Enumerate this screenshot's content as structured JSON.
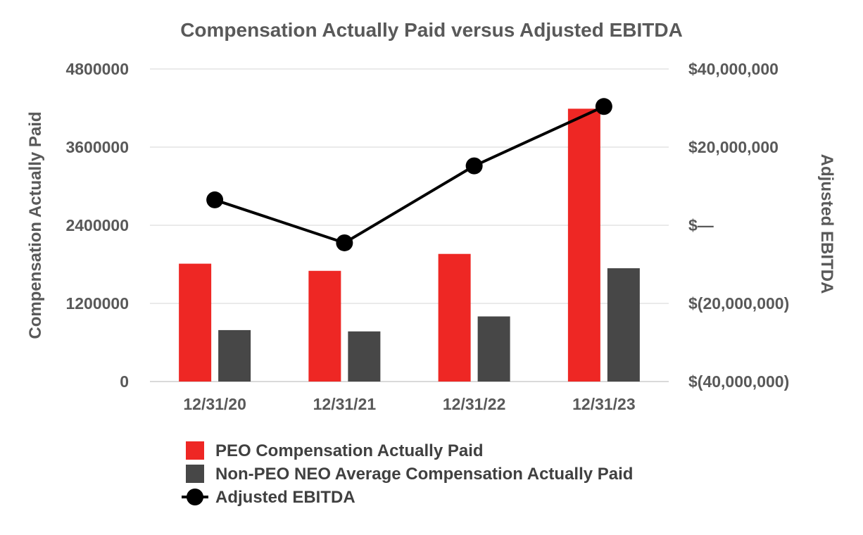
{
  "chart_data": {
    "type": "bar",
    "title": "Compensation Actually Paid versus Adjusted EBITDA",
    "categories": [
      "12/31/20",
      "12/31/21",
      "12/31/22",
      "12/31/23"
    ],
    "ylabel": "Compensation Actually Paid",
    "y2label": "Adjusted EBITDA",
    "ylim": [
      0,
      4800000
    ],
    "y2lim": [
      -40000000,
      40000000
    ],
    "yticks": [
      {
        "value": 0,
        "label": "0"
      },
      {
        "value": 1200000,
        "label": "1200000"
      },
      {
        "value": 2400000,
        "label": "2400000"
      },
      {
        "value": 3600000,
        "label": "3600000"
      },
      {
        "value": 4800000,
        "label": "4800000"
      }
    ],
    "y2ticks": [
      {
        "value": -40000000,
        "label": "$(40,000,000)"
      },
      {
        "value": -20000000,
        "label": "$(20,000,000)"
      },
      {
        "value": 0,
        "label": "$—"
      },
      {
        "value": 20000000,
        "label": "$20,000,000"
      },
      {
        "value": 40000000,
        "label": "$40,000,000"
      }
    ],
    "grid": true,
    "legend_position": "bottom",
    "series": [
      {
        "name": "PEO Compensation Actually Paid",
        "type": "bar",
        "axis": "left",
        "color": "#ee2724",
        "values": [
          1810000,
          1700000,
          1960000,
          4190000
        ]
      },
      {
        "name": "Non-PEO NEO Average Compensation Actually Paid",
        "type": "bar",
        "axis": "left",
        "color": "#474747",
        "values": [
          790000,
          770000,
          1000000,
          1740000
        ]
      },
      {
        "name": "Adjusted EBITDA",
        "type": "line",
        "axis": "right",
        "color": "#000000",
        "values": [
          6500000,
          -4500000,
          15200000,
          30400000
        ]
      }
    ]
  }
}
